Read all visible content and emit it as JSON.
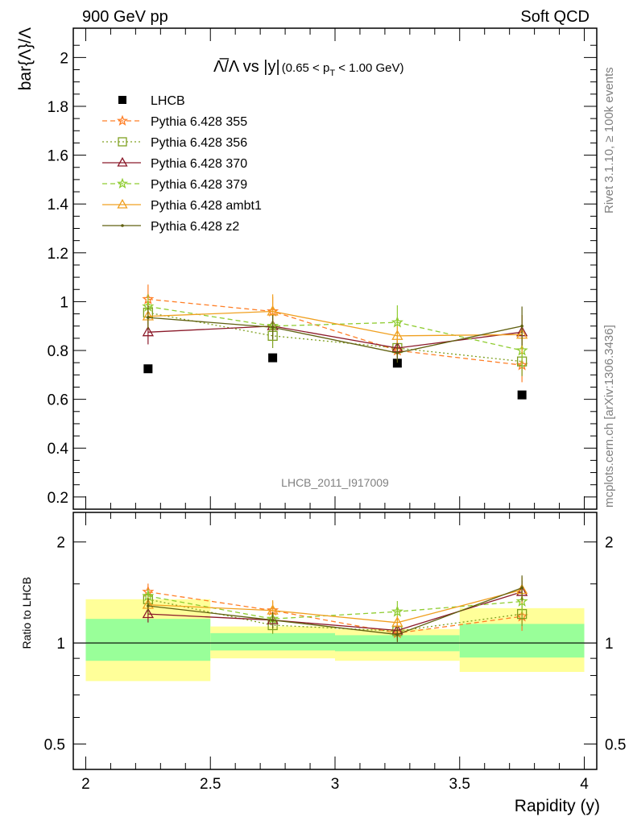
{
  "header": {
    "left": "900 GeV pp",
    "right": "Soft QCD"
  },
  "side_text": {
    "top": "Rivet 3.1.10, ≥ 100k events",
    "bottom": "mcplots.cern.ch [arXiv:1306.3436]"
  },
  "watermark": "LHCB_2011_I917009",
  "chart_data": [
    {
      "type": "scatter",
      "title": {
        "main": "Λ̅/Λ vs |y|",
        "sub": "(0.65 < p",
        "sub_sub": "T",
        "sub_end": " < 1.00 GeV)"
      },
      "ylabel": "bar{Λ}/Λ",
      "xlim": [
        1.95,
        4.05
      ],
      "ylim": [
        0.15,
        2.12
      ],
      "yticks": [
        0.2,
        0.4,
        0.6,
        0.8,
        1,
        1.2,
        1.4,
        1.6,
        1.8,
        2
      ],
      "ytick_labels": [
        "0.2",
        "0.4",
        "0.6",
        "0.8",
        "1",
        "1.2",
        "1.4",
        "1.6",
        "1.8",
        "2"
      ],
      "x": [
        2.25,
        2.75,
        3.25,
        3.75
      ],
      "series": [
        {
          "name": "LHCB",
          "color": "#000000",
          "marker": "square",
          "line": "none",
          "values": [
            0.725,
            0.77,
            0.748,
            0.618
          ]
        },
        {
          "name": "Pythia 6.428 355",
          "color": "#ff7f27",
          "marker": "star",
          "line": "dashed",
          "values": [
            1.01,
            0.96,
            0.8,
            0.74
          ],
          "err": [
            0.06,
            0.06,
            0.04,
            0.07
          ]
        },
        {
          "name": "Pythia 6.428 356",
          "color": "#7fa020",
          "marker": "open-square",
          "line": "dotted",
          "values": [
            0.955,
            0.86,
            0.81,
            0.755
          ],
          "err": [
            0.05,
            0.05,
            0.04,
            0.06
          ]
        },
        {
          "name": "Pythia 6.428 370",
          "color": "#8b1a2a",
          "marker": "open-triangle",
          "line": "solid",
          "values": [
            0.875,
            0.9,
            0.81,
            0.875
          ],
          "err": [
            0.05,
            0.05,
            0.04,
            0.07
          ]
        },
        {
          "name": "Pythia 6.428 379",
          "color": "#8fcc30",
          "marker": "star",
          "line": "dashed",
          "values": [
            0.98,
            0.9,
            0.915,
            0.8
          ],
          "err": [
            0.05,
            0.05,
            0.07,
            0.07
          ]
        },
        {
          "name": "Pythia 6.428 ambt1",
          "color": "#f0a020",
          "marker": "open-triangle",
          "line": "solid",
          "values": [
            0.94,
            0.96,
            0.86,
            0.865
          ],
          "err": [
            0.05,
            0.07,
            0.04,
            0.08
          ]
        },
        {
          "name": "Pythia 6.428 z2",
          "color": "#606010",
          "marker": "dot",
          "line": "solid",
          "values": [
            0.935,
            0.895,
            0.79,
            0.9
          ],
          "err": [
            0.05,
            0.05,
            0.04,
            0.08
          ]
        }
      ]
    },
    {
      "type": "scatter",
      "ylabel": "Ratio to LHCB",
      "xlabel": "Rapidity (y)",
      "log_y": true,
      "ylim": [
        0.42,
        2.45
      ],
      "yticks": [
        0.5,
        1,
        2
      ],
      "ytick_labels": [
        "0.5",
        "1",
        "2"
      ],
      "xticks": [
        2,
        2.5,
        3,
        3.5,
        4
      ],
      "xtick_labels": [
        "2",
        "2.5",
        "3",
        "3.5",
        "4"
      ],
      "x": [
        2.25,
        2.75,
        3.25,
        3.75
      ],
      "bands": {
        "bins": [
          [
            2.0,
            2.5
          ],
          [
            2.5,
            3.0
          ],
          [
            3.0,
            3.5
          ],
          [
            3.5,
            4.0
          ]
        ],
        "yellow": [
          [
            0.77,
            1.35
          ],
          [
            0.9,
            1.12
          ],
          [
            0.885,
            1.1
          ],
          [
            0.82,
            1.27
          ]
        ],
        "green": [
          [
            0.885,
            1.18
          ],
          [
            0.95,
            1.07
          ],
          [
            0.945,
            1.055
          ],
          [
            0.905,
            1.14
          ]
        ]
      },
      "series": [
        {
          "name": "Pythia 6.428 355",
          "values": [
            1.42,
            1.25,
            1.07,
            1.2
          ]
        },
        {
          "name": "Pythia 6.428 356",
          "values": [
            1.35,
            1.13,
            1.085,
            1.22
          ]
        },
        {
          "name": "Pythia 6.428 370",
          "values": [
            1.22,
            1.17,
            1.09,
            1.42
          ]
        },
        {
          "name": "Pythia 6.428 379",
          "values": [
            1.38,
            1.18,
            1.24,
            1.33
          ]
        },
        {
          "name": "Pythia 6.428 ambt1",
          "values": [
            1.3,
            1.25,
            1.15,
            1.44
          ]
        },
        {
          "name": "Pythia 6.428 z2",
          "values": [
            1.29,
            1.17,
            1.06,
            1.46
          ]
        }
      ]
    }
  ]
}
